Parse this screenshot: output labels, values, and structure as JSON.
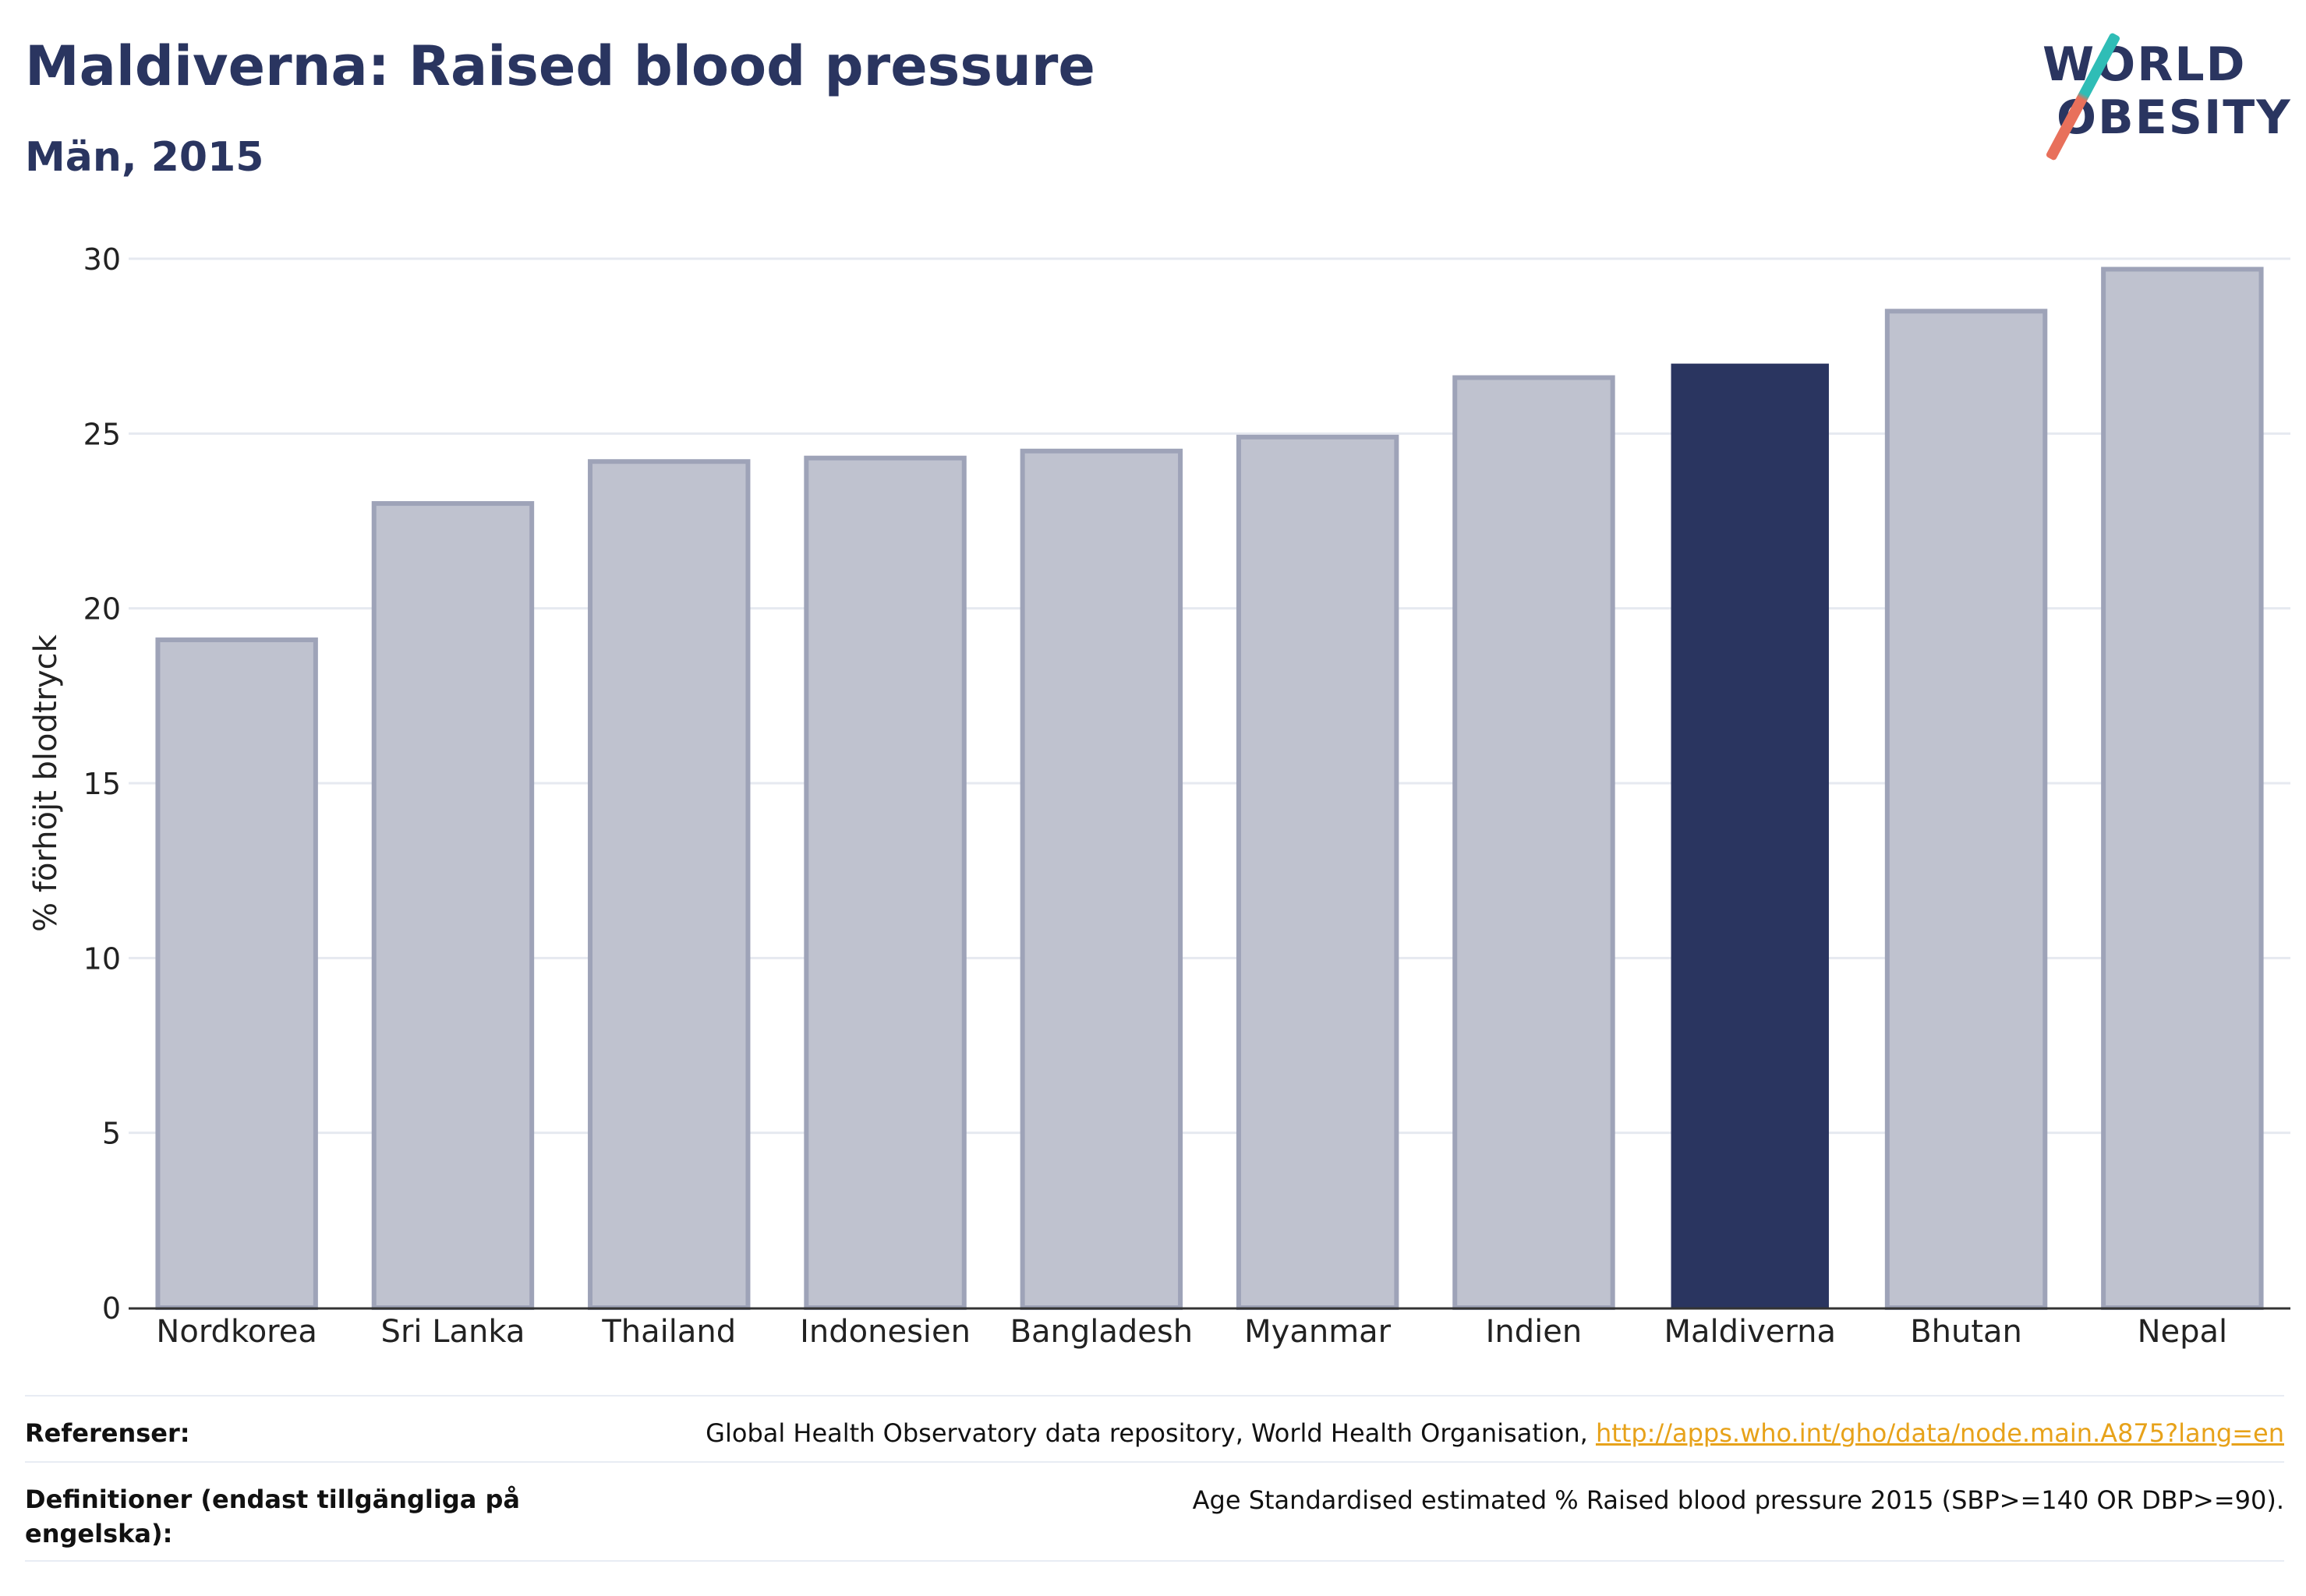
{
  "header": {
    "title": "Maldiverna: Raised blood pressure",
    "subtitle": "Män, 2015"
  },
  "logo": {
    "line1": "WORLD",
    "line2": "OBESITY",
    "colors": {
      "text": "#2a3560",
      "slash_top": "#2fbdb6",
      "slash_bottom": "#e8705b"
    }
  },
  "chart_data": {
    "type": "bar",
    "title": "Maldiverna: Raised blood pressure",
    "subtitle": "Män, 2015",
    "xlabel": "",
    "ylabel": "% förhöjt blodtryck",
    "ylim": [
      0,
      30
    ],
    "yticks": [
      0,
      5,
      10,
      15,
      20,
      25,
      30
    ],
    "grid": true,
    "categories": [
      "Nordkorea",
      "Sri Lanka",
      "Thailand",
      "Indonesien",
      "Bangladesh",
      "Myanmar",
      "Indien",
      "Maldiverna",
      "Bhutan",
      "Nepal"
    ],
    "values": [
      19.1,
      23.0,
      24.2,
      24.3,
      24.5,
      24.9,
      26.6,
      27.0,
      28.5,
      29.7
    ],
    "highlight": "Maldiverna",
    "colors": {
      "bar": "#bfc2cf",
      "bar_border": "#9ea3b8",
      "highlight": "#2a3560",
      "grid": "#e6e9f0",
      "axis": "#333333"
    }
  },
  "footer": {
    "references_label": "Referenser:",
    "references_text": "Global Health Observatory data repository, World Health Organisation, ",
    "references_link": "http://apps.who.int/gho/data/node.main.A875?lang=en",
    "definitions_label": "Definitioner (endast tillgängliga på engelska):",
    "definitions_text": "Age Standardised estimated % Raised blood pressure 2015 (SBP>=140 OR DBP>=90)."
  }
}
